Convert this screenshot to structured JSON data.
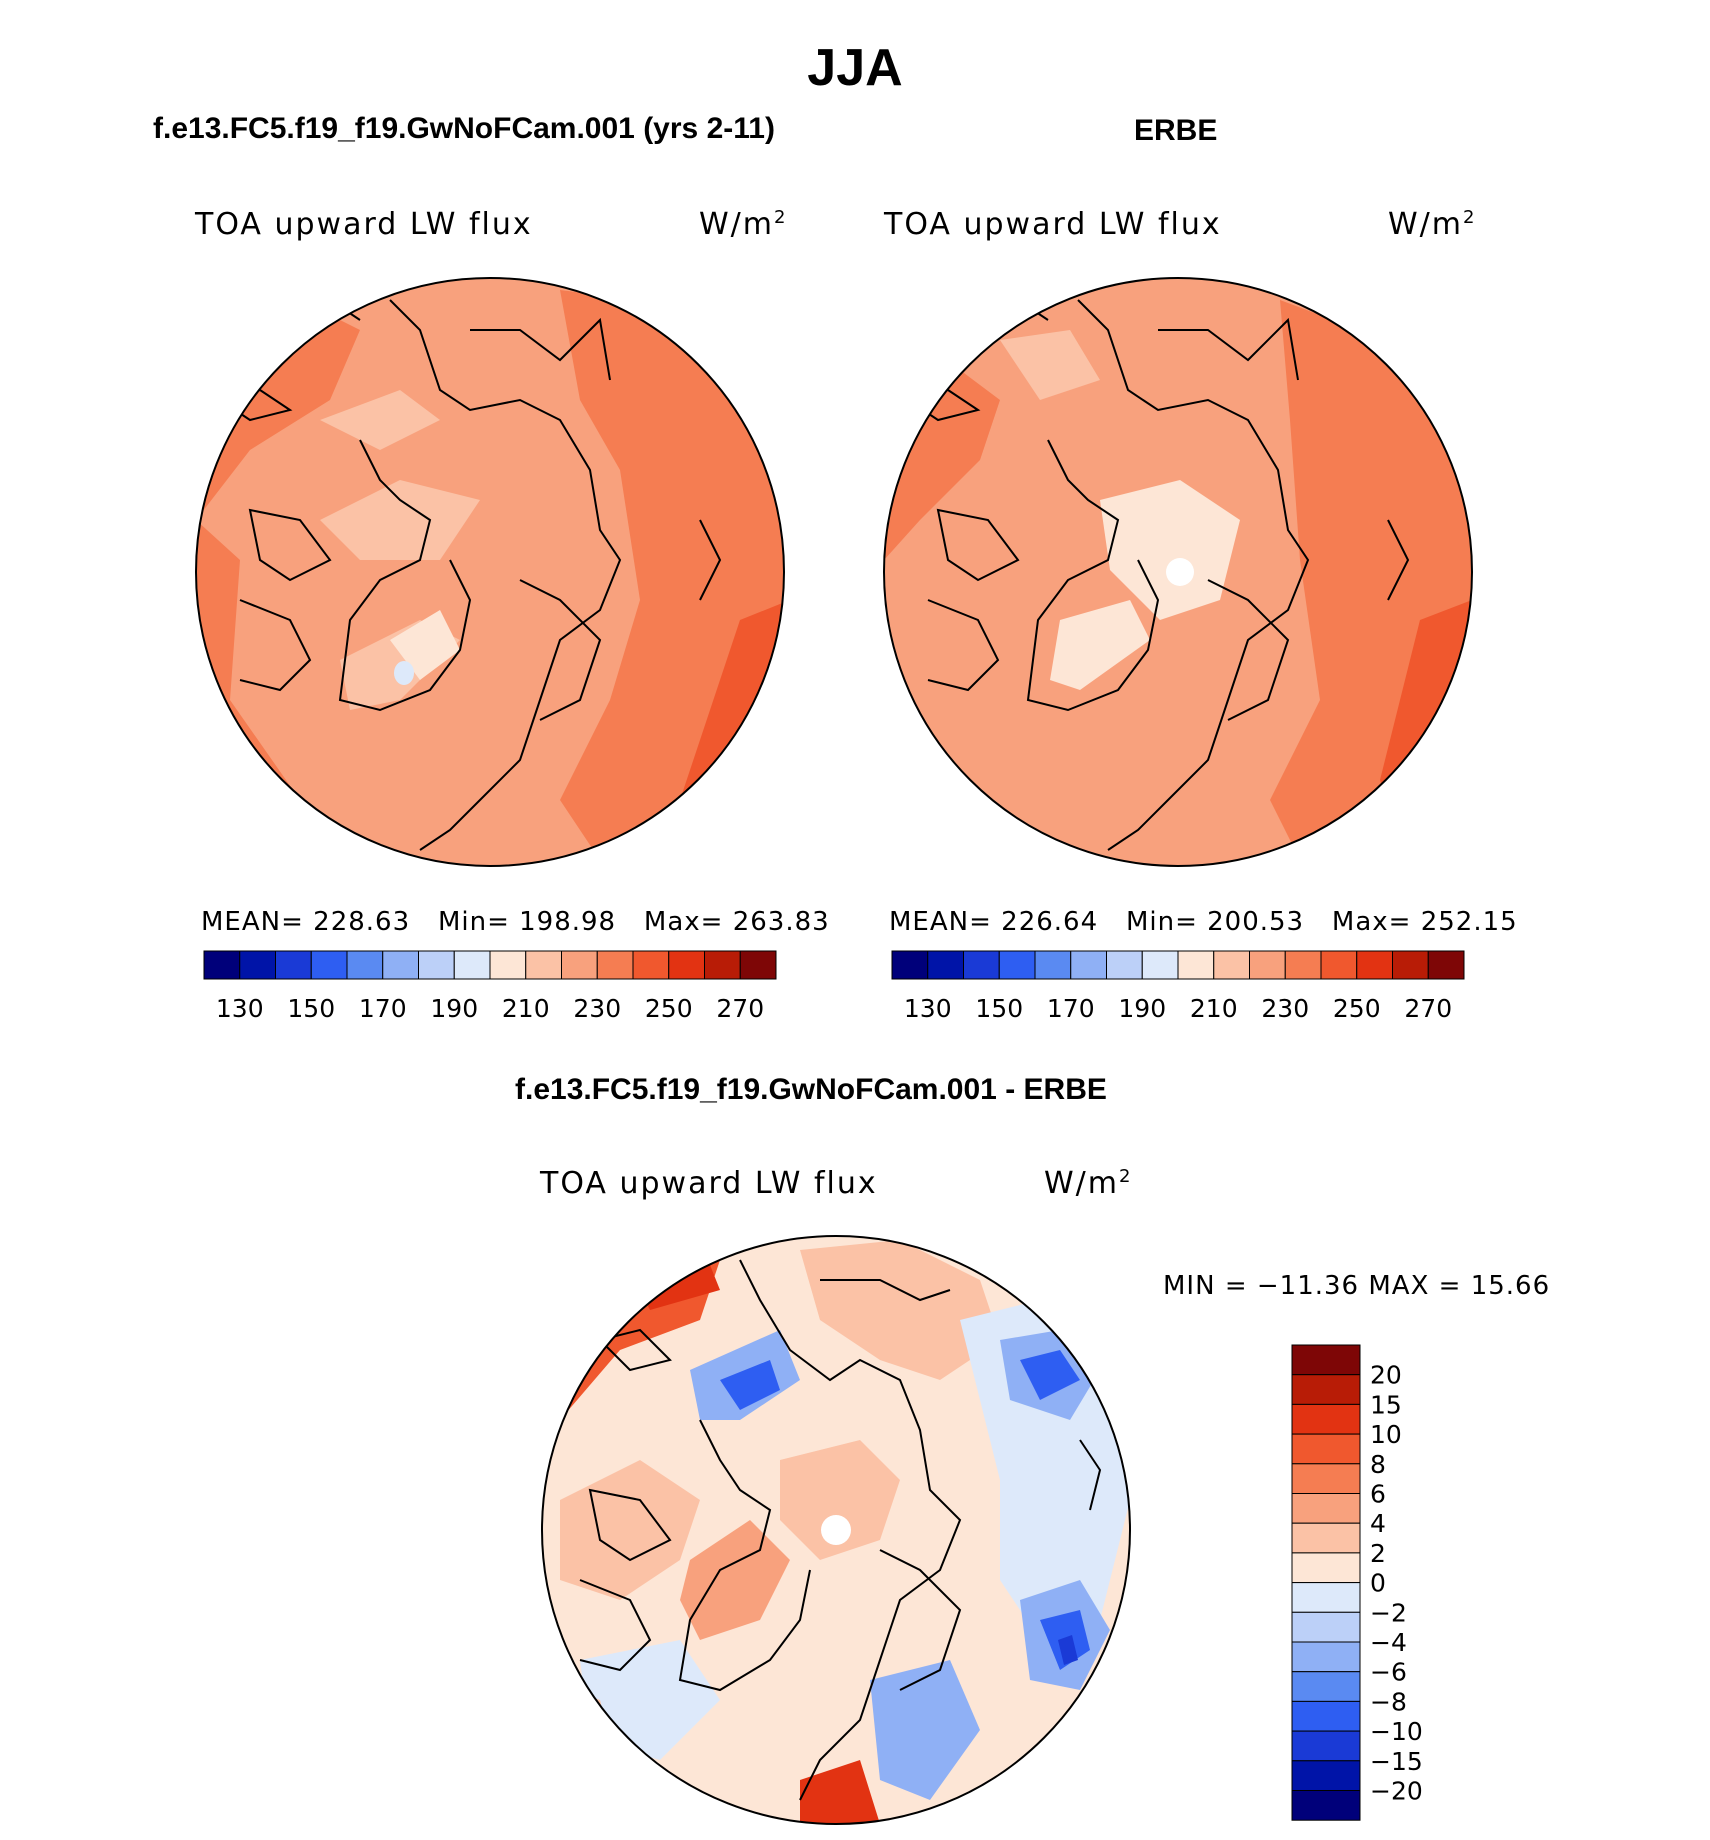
{
  "season_title": "JJA",
  "panels": {
    "model": {
      "case_title": "f.e13.FC5.f19_f19.GwNoFCam.001 (yrs 2-11)",
      "variable": "TOA upward LW flux",
      "units": "W/m",
      "units_exp": "2",
      "mean_label": "MEAN=",
      "mean": "228.63",
      "min_label": "Min=",
      "min": "198.98",
      "max_label": "Max=",
      "max": "263.83"
    },
    "obs": {
      "case_title": "ERBE",
      "variable": "TOA upward LW flux",
      "units": "W/m",
      "units_exp": "2",
      "mean_label": "MEAN=",
      "mean": "226.64",
      "min_label": "Min=",
      "min": "200.53",
      "max_label": "Max=",
      "max": "252.15"
    },
    "diff": {
      "case_title": "f.e13.FC5.f19_f19.GwNoFCam.001 - ERBE",
      "variable": "TOA upward LW flux",
      "units": "W/m",
      "units_exp": "2",
      "minmax_text": "MIN = −11.36 MAX =   15.66"
    }
  },
  "colorbar_abs": {
    "colors": [
      "#00007a",
      "#0014a8",
      "#1a3ad6",
      "#2e5ef2",
      "#5a8af2",
      "#8fb0f5",
      "#bcd0f8",
      "#dde9fa",
      "#fde6d6",
      "#fbc2a6",
      "#f8a17d",
      "#f57d52",
      "#f0582e",
      "#e23312",
      "#b81c06",
      "#7e0606"
    ],
    "tick_labels": [
      "130",
      "150",
      "170",
      "190",
      "210",
      "230",
      "250",
      "270"
    ]
  },
  "colorbar_diff": {
    "colors": [
      "#7e0606",
      "#b81c06",
      "#e23312",
      "#f0582e",
      "#f57d52",
      "#f8a17d",
      "#fbc2a6",
      "#fde6d6",
      "#dde9fa",
      "#bcd0f8",
      "#8fb0f5",
      "#5a8af2",
      "#2e5ef2",
      "#1a3ad6",
      "#0014a8",
      "#00007a"
    ],
    "tick_labels": [
      "20",
      "15",
      "10",
      "8",
      "6",
      "4",
      "2",
      "0",
      "−2",
      "−4",
      "−6",
      "−8",
      "−10",
      "−15",
      "−20"
    ]
  }
}
